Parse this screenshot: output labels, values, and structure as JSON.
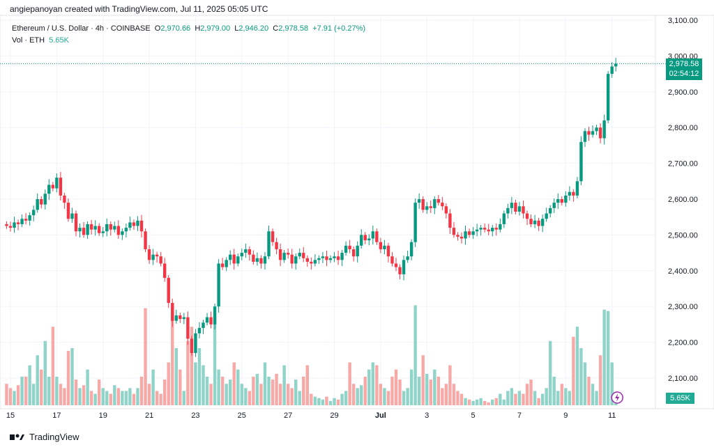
{
  "credit": "angiepanoyan created with TradingView.com, Jul 11, 2025 05:05 UTC",
  "legend": {
    "symbol": "Ethereum / U.S. Dollar · 4h · COINBASE",
    "o_label": "O",
    "o": "2,970.66",
    "h_label": "H",
    "h": "2,979.00",
    "l_label": "L",
    "l": "2,946.20",
    "c_label": "C",
    "c": "2,978.58",
    "change": "+7.91 (+0.27%)",
    "vol_label": "Vol · ETH",
    "vol": "5.65K"
  },
  "price_badge": {
    "price": "2,978.58",
    "countdown": "02:54:12"
  },
  "vol_badge": "5.65K",
  "footer": "TradingView",
  "colors": {
    "up": "#089981",
    "down": "#f23645",
    "vol_up": "#8fd3c9",
    "vol_down": "#f7a9a7"
  },
  "chart_data": {
    "type": "candlestick",
    "title": "Ethereum / U.S. Dollar · 4h · COINBASE",
    "ylim": [
      2050,
      3120
    ],
    "yticks": [
      "3,100.00",
      "3,000.00",
      "2,900.00",
      "2,800.00",
      "2,700.00",
      "2,600.00",
      "2,500.00",
      "2,400.00",
      "2,300.00",
      "2,200.00",
      "2,100.00"
    ],
    "ytick_values": [
      3100,
      3000,
      2900,
      2800,
      2700,
      2600,
      2500,
      2400,
      2300,
      2200,
      2100
    ],
    "xticks": [
      "15",
      "17",
      "19",
      "21",
      "23",
      "25",
      "27",
      "29",
      "Jul",
      "3",
      "5",
      "7",
      "9",
      "11"
    ],
    "xtick_candle_index": [
      1,
      13,
      25,
      37,
      49,
      61,
      73,
      85,
      97,
      109,
      121,
      133,
      145,
      157
    ],
    "last_price": 2978.58,
    "close": [
      2525,
      2520,
      2535,
      2530,
      2545,
      2540,
      2555,
      2570,
      2600,
      2585,
      2615,
      2640,
      2630,
      2660,
      2610,
      2590,
      2545,
      2560,
      2510,
      2520,
      2500,
      2530,
      2515,
      2525,
      2505,
      2510,
      2530,
      2515,
      2525,
      2500,
      2510,
      2520,
      2535,
      2525,
      2540,
      2510,
      2460,
      2430,
      2445,
      2440,
      2420,
      2380,
      2310,
      2260,
      2275,
      2265,
      2270,
      2210,
      2170,
      2225,
      2240,
      2255,
      2270,
      2250,
      2300,
      2420,
      2410,
      2430,
      2445,
      2420,
      2440,
      2450,
      2460,
      2445,
      2425,
      2435,
      2420,
      2440,
      2510,
      2480,
      2460,
      2430,
      2450,
      2445,
      2420,
      2440,
      2450,
      2435,
      2425,
      2420,
      2430,
      2435,
      2440,
      2430,
      2435,
      2440,
      2430,
      2450,
      2470,
      2460,
      2440,
      2470,
      2500,
      2485,
      2490,
      2510,
      2480,
      2460,
      2470,
      2440,
      2420,
      2410,
      2390,
      2430,
      2440,
      2480,
      2590,
      2600,
      2570,
      2580,
      2575,
      2600,
      2590,
      2580,
      2560,
      2520,
      2500,
      2495,
      2490,
      2510,
      2500,
      2510,
      2515,
      2520,
      2515,
      2510,
      2520,
      2515,
      2530,
      2560,
      2575,
      2590,
      2565,
      2580,
      2560,
      2545,
      2530,
      2540,
      2525,
      2545,
      2560,
      2575,
      2590,
      2600,
      2590,
      2610,
      2620,
      2610,
      2650,
      2760,
      2790,
      2780,
      2790,
      2800,
      2770,
      2820,
      2950,
      2970.66,
      2978.58
    ],
    "volume_k": [
      15,
      12,
      10,
      14,
      20,
      20,
      28,
      15,
      35,
      25,
      45,
      20,
      55,
      20,
      15,
      12,
      38,
      40,
      18,
      12,
      14,
      25,
      10,
      8,
      18,
      12,
      10,
      8,
      14,
      12,
      10,
      10,
      12,
      8,
      12,
      20,
      68,
      15,
      25,
      10,
      8,
      18,
      30,
      60,
      40,
      25,
      10,
      45,
      55,
      30,
      40,
      28,
      20,
      15,
      65,
      25,
      20,
      15,
      18,
      30,
      25,
      15,
      12,
      10,
      20,
      22,
      15,
      30,
      20,
      18,
      22,
      15,
      28,
      15,
      12,
      18,
      10,
      20,
      28,
      8,
      6,
      5,
      4,
      6,
      3,
      5,
      4,
      8,
      10,
      30,
      15,
      12,
      14,
      20,
      25,
      30,
      28,
      15,
      12,
      10,
      20,
      25,
      18,
      10,
      12,
      25,
      70,
      20,
      35,
      22,
      18,
      25,
      20,
      12,
      15,
      28,
      15,
      10,
      8,
      5,
      4,
      3,
      4,
      5,
      3,
      2,
      4,
      5,
      8,
      4,
      10,
      12,
      8,
      10,
      8,
      15,
      18,
      10,
      5,
      8,
      12,
      45,
      20,
      10,
      15,
      12,
      10,
      48,
      55,
      40,
      30,
      20,
      15,
      10,
      35,
      67,
      66,
      30,
      5.65
    ]
  }
}
